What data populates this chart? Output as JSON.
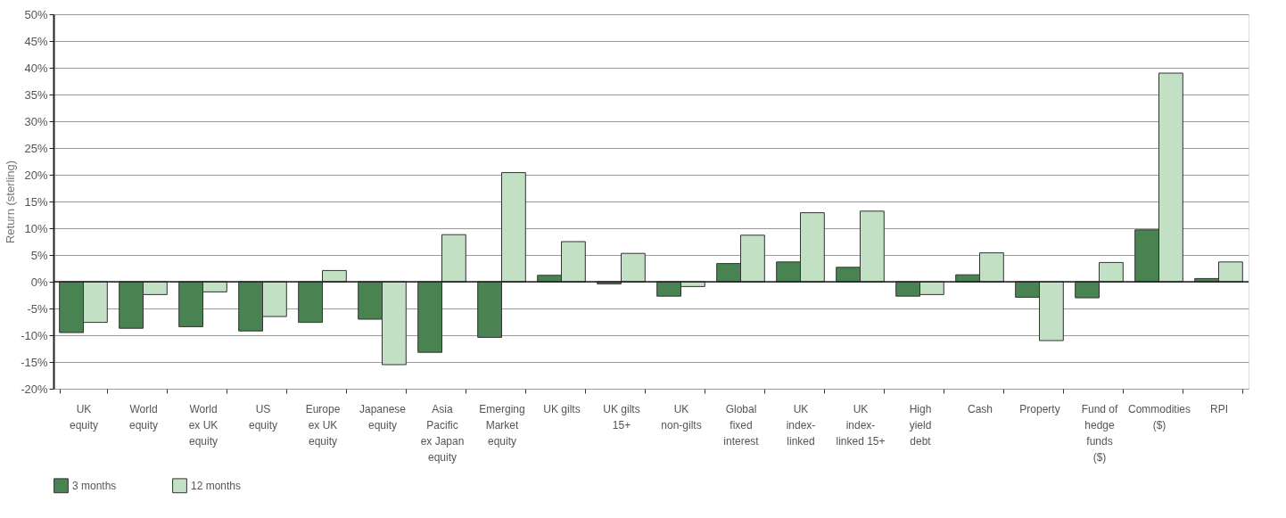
{
  "chart_data": {
    "type": "bar",
    "ylabel": "Return (sterling)",
    "categories": [
      "UK\nequity",
      "World\nequity",
      "World\nex UK\nequity",
      "US\nequity",
      "Europe\nex UK\nequity",
      "Japanese\nequity",
      "Asia\nPacific\nex Japan\nequity",
      "Emerging\nMarket\nequity",
      "UK gilts",
      "UK gilts\n15+",
      "UK\nnon-gilts",
      "Global\nfixed\ninterest",
      "UK\nindex-\nlinked",
      "UK\nindex-\nlinked 15+",
      "High\nyield\ndebt",
      "Cash",
      "Property",
      "Fund of\nhedge\nfunds\n($)",
      "Commodities\n($)",
      "RPI"
    ],
    "series": [
      {
        "name": "3 months",
        "color": "#4a8352",
        "values": [
          -9.5,
          -8.7,
          -8.4,
          -9.2,
          -7.6,
          -7.0,
          -13.2,
          -10.4,
          1.2,
          -0.4,
          -2.7,
          3.4,
          3.7,
          2.7,
          -2.7,
          1.3,
          -2.9,
          -3.0,
          9.7,
          0.6
        ]
      },
      {
        "name": "12 months",
        "color": "#c2e0c4",
        "values": [
          -7.6,
          -2.4,
          -1.9,
          -6.5,
          2.1,
          -15.5,
          8.8,
          20.4,
          7.5,
          5.3,
          -0.9,
          8.7,
          12.9,
          13.2,
          -2.4,
          5.4,
          -11.0,
          3.6,
          39.0,
          3.7
        ]
      }
    ],
    "ylim": [
      -20,
      50
    ],
    "yticks": [
      {
        "value": -20,
        "label": "-20%"
      },
      {
        "value": -15,
        "label": "-15%"
      },
      {
        "value": -10,
        "label": "-10%"
      },
      {
        "value": -5,
        "label": "-5%"
      },
      {
        "value": 0,
        "label": "0%"
      },
      {
        "value": 5,
        "label": "5%"
      },
      {
        "value": 10,
        "label": "10%"
      },
      {
        "value": 15,
        "label": "15%"
      },
      {
        "value": 20,
        "label": "20%"
      },
      {
        "value": 25,
        "label": "25%"
      },
      {
        "value": 30,
        "label": "30%"
      },
      {
        "value": 35,
        "label": "35%"
      },
      {
        "value": 40,
        "label": "40%"
      },
      {
        "value": 45,
        "label": "45%"
      },
      {
        "value": 50,
        "label": "50%"
      }
    ],
    "grid": "y",
    "legend": "bottom left"
  }
}
